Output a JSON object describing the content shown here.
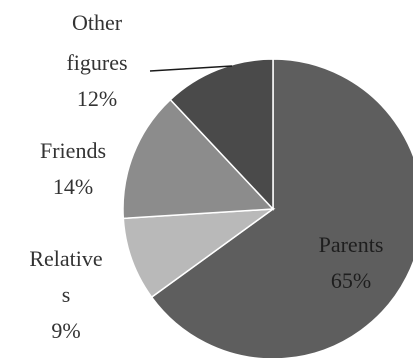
{
  "chart_data": {
    "type": "pie",
    "title": "",
    "slices": [
      {
        "label": "Parents",
        "value_label": "65%",
        "value": 65,
        "color": "#5e5e5e"
      },
      {
        "label": "Relatives",
        "value_label": "9%",
        "value": 9,
        "color": "#b9b9b9"
      },
      {
        "label": "Friends",
        "value_label": "14%",
        "value": 14,
        "color": "#8c8c8c"
      },
      {
        "label": "Other figures",
        "value_label": "12%",
        "value": 12,
        "color": "#4a4a4a"
      }
    ],
    "labels": {
      "parents": [
        "Parents",
        "65%"
      ],
      "relatives": [
        "Relative",
        "s",
        "9%"
      ],
      "friends": [
        "Friends",
        "14%"
      ],
      "other": [
        "Other",
        "figures",
        "12%"
      ]
    },
    "legend": "none",
    "start_angle": "12 o'clock",
    "direction": "clockwise"
  }
}
